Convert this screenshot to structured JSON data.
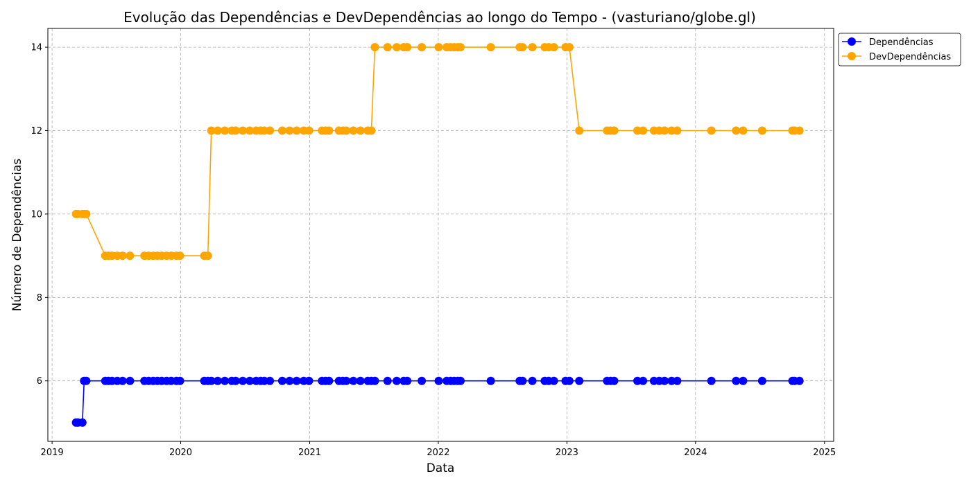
{
  "chart_data": {
    "type": "line",
    "title": "Evolução das Dependências e DevDependências ao longo do Tempo - (vasturiano/globe.gl)",
    "xlabel": "Data",
    "ylabel": "Número de Dependências",
    "x_axis": "date",
    "xlim": [
      "2018-12-20",
      "2025-01-27"
    ],
    "ylim": [
      4.55,
      14.45
    ],
    "x_ticks": [
      "2019",
      "2020",
      "2021",
      "2022",
      "2023",
      "2024",
      "2025"
    ],
    "y_ticks": [
      6,
      8,
      10,
      12,
      14
    ],
    "grid": true,
    "legend_position": "upper right, outside plot",
    "x": [
      "2019-03-10",
      "2019-03-15",
      "2019-03-28",
      "2019-04-02",
      "2019-04-08",
      "2019-06-01",
      "2019-06-10",
      "2019-06-20",
      "2019-07-05",
      "2019-07-20",
      "2019-08-10",
      "2019-09-20",
      "2019-10-02",
      "2019-10-15",
      "2019-10-27",
      "2019-11-08",
      "2019-11-22",
      "2019-12-05",
      "2019-12-20",
      "2019-12-30",
      "2020-03-08",
      "2020-03-18",
      "2020-03-28",
      "2020-04-15",
      "2020-05-05",
      "2020-05-25",
      "2020-06-05",
      "2020-06-25",
      "2020-07-15",
      "2020-08-02",
      "2020-08-15",
      "2020-08-25",
      "2020-09-10",
      "2020-10-15",
      "2020-11-05",
      "2020-11-25",
      "2020-12-15",
      "2020-12-30",
      "2021-02-05",
      "2021-02-15",
      "2021-02-25",
      "2021-03-25",
      "2021-04-05",
      "2021-04-15",
      "2021-05-05",
      "2021-05-25",
      "2021-06-15",
      "2021-06-25",
      "2021-07-05",
      "2021-08-10",
      "2021-09-05",
      "2021-09-25",
      "2021-10-05",
      "2021-11-15",
      "2022-01-02",
      "2022-01-25",
      "2022-02-05",
      "2022-02-15",
      "2022-02-25",
      "2022-03-05",
      "2022-05-30",
      "2022-08-20",
      "2022-08-28",
      "2022-09-25",
      "2022-10-30",
      "2022-11-10",
      "2022-11-25",
      "2022-12-28",
      "2023-01-08",
      "2023-02-05",
      "2023-04-25",
      "2023-05-05",
      "2023-05-15",
      "2023-07-20",
      "2023-08-05",
      "2023-09-05",
      "2023-09-20",
      "2023-10-05",
      "2023-10-25",
      "2023-11-10",
      "2024-02-15",
      "2024-04-25",
      "2024-05-15",
      "2024-07-08",
      "2024-10-02",
      "2024-10-08",
      "2024-10-22"
    ],
    "series": [
      {
        "name": "Dependências",
        "color": "#0000ff",
        "values": [
          5,
          5,
          5,
          6,
          6,
          6,
          6,
          6,
          6,
          6,
          6,
          6,
          6,
          6,
          6,
          6,
          6,
          6,
          6,
          6,
          6,
          6,
          6,
          6,
          6,
          6,
          6,
          6,
          6,
          6,
          6,
          6,
          6,
          6,
          6,
          6,
          6,
          6,
          6,
          6,
          6,
          6,
          6,
          6,
          6,
          6,
          6,
          6,
          6,
          6,
          6,
          6,
          6,
          6,
          6,
          6,
          6,
          6,
          6,
          6,
          6,
          6,
          6,
          6,
          6,
          6,
          6,
          6,
          6,
          6,
          6,
          6,
          6,
          6,
          6,
          6,
          6,
          6,
          6,
          6,
          6,
          6,
          6,
          6,
          6,
          6,
          6
        ]
      },
      {
        "name": "DevDependências",
        "color": "#ffa500",
        "values": [
          10,
          10,
          10,
          10,
          10,
          9,
          9,
          9,
          9,
          9,
          9,
          9,
          9,
          9,
          9,
          9,
          9,
          9,
          9,
          9,
          9,
          9,
          12,
          12,
          12,
          12,
          12,
          12,
          12,
          12,
          12,
          12,
          12,
          12,
          12,
          12,
          12,
          12,
          12,
          12,
          12,
          12,
          12,
          12,
          12,
          12,
          12,
          12,
          14,
          14,
          14,
          14,
          14,
          14,
          14,
          14,
          14,
          14,
          14,
          14,
          14,
          14,
          14,
          14,
          14,
          14,
          14,
          14,
          14,
          12,
          12,
          12,
          12,
          12,
          12,
          12,
          12,
          12,
          12,
          12,
          12,
          12,
          12,
          12,
          12,
          12,
          12
        ]
      }
    ]
  }
}
